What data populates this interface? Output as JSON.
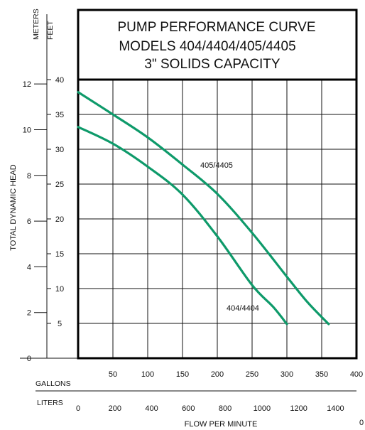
{
  "chart_data": {
    "type": "line",
    "title_lines": [
      "PUMP PERFORMANCE CURVE",
      "MODELS 404/4404/405/4405",
      "3\" SOLIDS CAPACITY"
    ],
    "xlabel": "FLOW PER MINUTE",
    "ylabel": "TOTAL DYNAMIC HEAD",
    "x_unit_primary": "GALLONS",
    "x_unit_secondary": "LITERS",
    "y_unit_primary": "FEET",
    "y_unit_secondary": "METERS",
    "xlim": [
      0,
      400
    ],
    "ylim": [
      0,
      40
    ],
    "x_ticks_gallons": [
      50,
      100,
      150,
      200,
      250,
      300,
      350,
      400
    ],
    "x_ticks_liters": [
      0,
      200,
      400,
      600,
      800,
      1000,
      1200,
      1400
    ],
    "x_ticks_liters_extra": "0",
    "y_ticks_feet": [
      5,
      10,
      15,
      20,
      25,
      30,
      35,
      40
    ],
    "y_ticks_meters": [
      0,
      2,
      4,
      6,
      8,
      10,
      12
    ],
    "grid": true,
    "line_color": "#0e9a6a",
    "series": [
      {
        "name": "405/4405",
        "x": [
          0,
          50,
          100,
          150,
          200,
          250,
          300,
          330,
          360
        ],
        "y": [
          38.2,
          35.0,
          31.7,
          27.8,
          23.6,
          18.0,
          11.7,
          8.0,
          4.9
        ]
      },
      {
        "name": "404/4404",
        "x": [
          0,
          50,
          100,
          150,
          200,
          250,
          280,
          300
        ],
        "y": [
          33.2,
          30.8,
          27.5,
          23.5,
          17.5,
          10.5,
          7.4,
          4.9
        ]
      }
    ]
  }
}
